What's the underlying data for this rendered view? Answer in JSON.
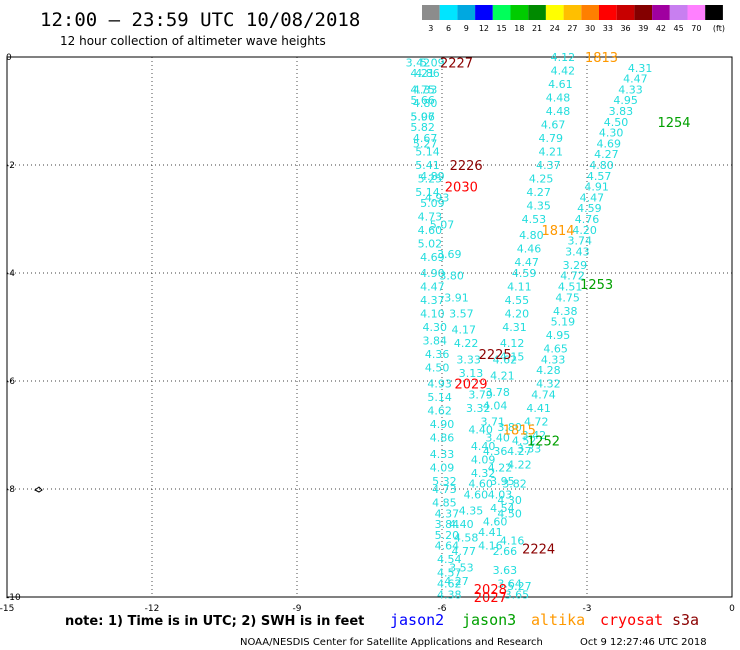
{
  "title": "12:00 – 23:59 UTC 10/08/2018",
  "subtitle": "12 hour collection of altimeter wave heights",
  "legend": {
    "unit": "(ft)",
    "entries": [
      {
        "label": "3",
        "color": "#8c8c8c"
      },
      {
        "label": "6",
        "color": "#00e5ff"
      },
      {
        "label": "9",
        "color": "#00a8e0"
      },
      {
        "label": "12",
        "color": "#0000ff"
      },
      {
        "label": "15",
        "color": "#00ff5a"
      },
      {
        "label": "18",
        "color": "#00cc00"
      },
      {
        "label": "21",
        "color": "#008a00"
      },
      {
        "label": "24",
        "color": "#ffff00"
      },
      {
        "label": "27",
        "color": "#ffbf00"
      },
      {
        "label": "30",
        "color": "#ff7f00"
      },
      {
        "label": "33",
        "color": "#ff0000"
      },
      {
        "label": "36",
        "color": "#c80000"
      },
      {
        "label": "39",
        "color": "#840000"
      },
      {
        "label": "42",
        "color": "#a000a0"
      },
      {
        "label": "45",
        "color": "#c87ff0"
      },
      {
        "label": "70",
        "color": "#ff80ff"
      },
      {
        "label": "",
        "color": "#000000"
      }
    ]
  },
  "note": "note: 1) Time is in UTC; 2) SWH is in feet",
  "satellites": [
    {
      "name": "jason2",
      "color": "#0000ff"
    },
    {
      "name": "jason3",
      "color": "#00a000"
    },
    {
      "name": "altika",
      "color": "#ff9900"
    },
    {
      "name": "cryosat",
      "color": "#ff0000"
    },
    {
      "name": "s3a",
      "color": "#8b0000"
    }
  ],
  "footer": {
    "center": "NOAA/NESDIS Center for Satellite Applications and Research",
    "timestamp": "Oct  9 12:27:46 UTC 2018"
  },
  "chart_data": {
    "type": "scatter",
    "xlim": [
      -15,
      0
    ],
    "ylim": [
      -10,
      0
    ],
    "xticks": [
      "-15",
      "-12",
      "-9",
      "-6",
      "-3",
      "0"
    ],
    "yticks": [
      "0",
      "-2",
      "-4",
      "-6",
      "-8",
      "-10"
    ],
    "grid": true,
    "colors": {
      "value": "#22dddd",
      "jason3": "#00a000",
      "altika": "#ff9900",
      "cryosat": "#ff0000",
      "s3a": "#8b0000"
    },
    "pass_labels": [
      {
        "text": "2227",
        "x": -5.7,
        "y": -0.1,
        "sat": "s3a"
      },
      {
        "text": "1813",
        "x": -2.7,
        "y": 0.0,
        "sat": "altika"
      },
      {
        "text": "1254",
        "x": -1.2,
        "y": -1.2,
        "sat": "jason3"
      },
      {
        "text": "2226",
        "x": -5.5,
        "y": -2.0,
        "sat": "s3a"
      },
      {
        "text": "2030",
        "x": -5.6,
        "y": -2.4,
        "sat": "cryosat"
      },
      {
        "text": "1814",
        "x": -3.6,
        "y": -3.2,
        "sat": "altika"
      },
      {
        "text": "1253",
        "x": -2.8,
        "y": -4.2,
        "sat": "jason3"
      },
      {
        "text": "2225",
        "x": -4.9,
        "y": -5.5,
        "sat": "s3a"
      },
      {
        "text": "2029",
        "x": -5.4,
        "y": -6.05,
        "sat": "cryosat"
      },
      {
        "text": "1815",
        "x": -4.4,
        "y": -6.9,
        "sat": "altika"
      },
      {
        "text": "1252",
        "x": -3.9,
        "y": -7.1,
        "sat": "jason3"
      },
      {
        "text": "2224",
        "x": -4.0,
        "y": -9.1,
        "sat": "s3a"
      },
      {
        "text": "2028",
        "x": -5.0,
        "y": -9.85,
        "sat": "cryosat"
      },
      {
        "text": "2027",
        "x": -5.0,
        "y": -10.0,
        "sat": "cryosat"
      }
    ],
    "tracks": [
      {
        "name": "s3a-pass",
        "values": [
          {
            "x": -6.5,
            "y": -0.1,
            "v": "3.42"
          },
          {
            "x": -6.4,
            "y": -0.3,
            "v": "4.21"
          },
          {
            "x": -6.4,
            "y": -0.6,
            "v": "4.75"
          },
          {
            "x": -6.4,
            "y": -0.8,
            "v": "5.66"
          },
          {
            "x": -6.4,
            "y": -1.1,
            "v": "5.97"
          },
          {
            "x": -6.4,
            "y": -1.3,
            "v": "5.82"
          },
          {
            "x": -6.35,
            "y": -1.5,
            "v": "4.67"
          },
          {
            "x": -6.3,
            "y": -1.75,
            "v": "5.14"
          },
          {
            "x": -6.3,
            "y": -2.0,
            "v": "5.41"
          },
          {
            "x": -6.25,
            "y": -2.25,
            "v": "5.25"
          },
          {
            "x": -6.3,
            "y": -2.5,
            "v": "5.14"
          },
          {
            "x": -6.2,
            "y": -2.7,
            "v": "5.09"
          },
          {
            "x": -6.25,
            "y": -2.95,
            "v": "4.73"
          },
          {
            "x": -6.25,
            "y": -3.2,
            "v": "4.60"
          },
          {
            "x": -6.25,
            "y": -3.45,
            "v": "5.02"
          },
          {
            "x": -6.2,
            "y": -3.7,
            "v": "4.69"
          },
          {
            "x": -6.2,
            "y": -4.0,
            "v": "4.90"
          },
          {
            "x": -6.2,
            "y": -4.25,
            "v": "4.47"
          },
          {
            "x": -6.2,
            "y": -4.5,
            "v": "4.37"
          },
          {
            "x": -6.2,
            "y": -4.75,
            "v": "4.10"
          },
          {
            "x": -6.15,
            "y": -5.0,
            "v": "4.30"
          },
          {
            "x": -6.15,
            "y": -5.25,
            "v": "3.84"
          },
          {
            "x": -6.1,
            "y": -5.5,
            "v": "4.36"
          },
          {
            "x": -6.1,
            "y": -5.75,
            "v": "4.50"
          },
          {
            "x": -6.05,
            "y": -6.05,
            "v": "4.93"
          },
          {
            "x": -6.05,
            "y": -6.3,
            "v": "5.14"
          },
          {
            "x": -6.05,
            "y": -6.55,
            "v": "4.62"
          },
          {
            "x": -6.0,
            "y": -6.8,
            "v": "4.90"
          },
          {
            "x": -6.0,
            "y": -7.05,
            "v": "4.86"
          },
          {
            "x": -6.0,
            "y": -7.35,
            "v": "4.33"
          },
          {
            "x": -6.0,
            "y": -7.6,
            "v": "4.09"
          },
          {
            "x": -5.95,
            "y": -7.85,
            "v": "5.32"
          },
          {
            "x": -5.95,
            "y": -8.0,
            "v": "4.73"
          },
          {
            "x": -5.95,
            "y": -8.25,
            "v": "4.85"
          },
          {
            "x": -5.9,
            "y": -8.45,
            "v": "4.37"
          },
          {
            "x": -5.9,
            "y": -8.65,
            "v": "3.84"
          },
          {
            "x": -5.9,
            "y": -8.85,
            "v": "5.20"
          },
          {
            "x": -5.9,
            "y": -9.05,
            "v": "4.64"
          },
          {
            "x": -5.85,
            "y": -9.3,
            "v": "4.54"
          },
          {
            "x": -5.85,
            "y": -9.55,
            "v": "4.57"
          },
          {
            "x": -5.85,
            "y": -9.75,
            "v": "4.62"
          },
          {
            "x": -5.85,
            "y": -9.95,
            "v": "4.38"
          }
        ]
      },
      {
        "name": "cryosat-pass",
        "values": [
          {
            "x": -6.2,
            "y": -0.1,
            "v": "5.09"
          },
          {
            "x": -6.3,
            "y": -0.3,
            "v": "4.86"
          },
          {
            "x": -6.35,
            "y": -0.6,
            "v": "4.33"
          },
          {
            "x": -6.35,
            "y": -0.85,
            "v": "4.80"
          },
          {
            "x": -6.4,
            "y": -1.1,
            "v": "5.06"
          },
          {
            "x": -6.35,
            "y": -1.6,
            "v": "5.27"
          },
          {
            "x": -6.2,
            "y": -2.2,
            "v": "4.89"
          },
          {
            "x": -6.1,
            "y": -2.6,
            "v": "4.93"
          },
          {
            "x": -6.0,
            "y": -3.1,
            "v": "5.07"
          },
          {
            "x": -5.85,
            "y": -3.65,
            "v": "3.69"
          },
          {
            "x": -5.8,
            "y": -4.05,
            "v": "3.80"
          },
          {
            "x": -5.7,
            "y": -4.45,
            "v": "3.91"
          },
          {
            "x": -5.6,
            "y": -4.75,
            "v": "3.57"
          },
          {
            "x": -5.55,
            "y": -5.05,
            "v": "4.17"
          },
          {
            "x": -5.5,
            "y": -5.3,
            "v": "4.22"
          },
          {
            "x": -5.45,
            "y": -5.6,
            "v": "3.33"
          },
          {
            "x": -5.4,
            "y": -5.85,
            "v": "3.13"
          },
          {
            "x": -5.2,
            "y": -6.25,
            "v": "3.79"
          },
          {
            "x": -5.25,
            "y": -6.5,
            "v": "3.32"
          },
          {
            "x": -5.2,
            "y": -6.9,
            "v": "4.40"
          },
          {
            "x": -5.15,
            "y": -7.2,
            "v": "4.40"
          },
          {
            "x": -5.15,
            "y": -7.45,
            "v": "4.09"
          },
          {
            "x": -5.15,
            "y": -7.7,
            "v": "4.32"
          },
          {
            "x": -5.2,
            "y": -7.9,
            "v": "4.60"
          },
          {
            "x": -5.3,
            "y": -8.1,
            "v": "4.60"
          },
          {
            "x": -5.4,
            "y": -8.4,
            "v": "4.35"
          },
          {
            "x": -5.6,
            "y": -8.65,
            "v": "4.40"
          },
          {
            "x": -5.5,
            "y": -8.9,
            "v": "4.58"
          },
          {
            "x": -5.55,
            "y": -9.15,
            "v": "4.77"
          },
          {
            "x": -5.6,
            "y": -9.45,
            "v": "3.53"
          },
          {
            "x": -5.7,
            "y": -9.7,
            "v": "4.27"
          }
        ]
      },
      {
        "name": "s3a-pass-2",
        "values": [
          {
            "x": -4.7,
            "y": -5.6,
            "v": "4.62"
          },
          {
            "x": -4.75,
            "y": -5.9,
            "v": "4.21"
          },
          {
            "x": -4.85,
            "y": -6.2,
            "v": "3.78"
          },
          {
            "x": -4.9,
            "y": -6.45,
            "v": "4.04"
          },
          {
            "x": -4.95,
            "y": -6.75,
            "v": "3.71"
          },
          {
            "x": -4.85,
            "y": -7.05,
            "v": "3.40"
          },
          {
            "x": -4.9,
            "y": -7.3,
            "v": "4.36"
          },
          {
            "x": -4.8,
            "y": -7.6,
            "v": "4.22"
          },
          {
            "x": -4.75,
            "y": -7.85,
            "v": "3.95"
          },
          {
            "x": -4.8,
            "y": -8.1,
            "v": "4.03"
          },
          {
            "x": -4.75,
            "y": -8.35,
            "v": "4.54"
          },
          {
            "x": -4.9,
            "y": -8.6,
            "v": "4.60"
          },
          {
            "x": -5.0,
            "y": -8.8,
            "v": "4.41"
          },
          {
            "x": -5.0,
            "y": -9.05,
            "v": "4.16"
          },
          {
            "x": -4.7,
            "y": -9.15,
            "v": "2.66"
          },
          {
            "x": -4.7,
            "y": -9.5,
            "v": "3.63"
          },
          {
            "x": -4.6,
            "y": -9.75,
            "v": "3.64"
          },
          {
            "x": -4.45,
            "y": -9.95,
            "v": "3.65"
          }
        ]
      },
      {
        "name": "altika-pass",
        "values": [
          {
            "x": -3.5,
            "y": 0.0,
            "v": "4.12"
          },
          {
            "x": -3.5,
            "y": -0.25,
            "v": "4.42"
          },
          {
            "x": -3.55,
            "y": -0.5,
            "v": "4.61"
          },
          {
            "x": -3.6,
            "y": -0.75,
            "v": "4.48"
          },
          {
            "x": -3.6,
            "y": -1.0,
            "v": "4.48"
          },
          {
            "x": -3.7,
            "y": -1.25,
            "v": "4.67"
          },
          {
            "x": -3.75,
            "y": -1.5,
            "v": "4.79"
          },
          {
            "x": -3.75,
            "y": -1.75,
            "v": "4.21"
          },
          {
            "x": -3.8,
            "y": -2.0,
            "v": "4.37"
          },
          {
            "x": -3.95,
            "y": -2.25,
            "v": "4.25"
          },
          {
            "x": -4.0,
            "y": -2.5,
            "v": "4.27"
          },
          {
            "x": -4.0,
            "y": -2.75,
            "v": "4.35"
          },
          {
            "x": -4.1,
            "y": -3.0,
            "v": "4.53"
          },
          {
            "x": -4.15,
            "y": -3.3,
            "v": "4.80"
          },
          {
            "x": -4.2,
            "y": -3.55,
            "v": "4.46"
          },
          {
            "x": -4.25,
            "y": -3.8,
            "v": "4.47"
          },
          {
            "x": -4.3,
            "y": -4.0,
            "v": "4.59"
          },
          {
            "x": -4.4,
            "y": -4.25,
            "v": "4.11"
          },
          {
            "x": -4.45,
            "y": -4.5,
            "v": "4.55"
          },
          {
            "x": -4.45,
            "y": -4.75,
            "v": "4.20"
          },
          {
            "x": -4.5,
            "y": -5.0,
            "v": "4.31"
          },
          {
            "x": -4.55,
            "y": -5.3,
            "v": "4.12"
          },
          {
            "x": -4.55,
            "y": -5.55,
            "v": "4.15"
          },
          {
            "x": -4.6,
            "y": -6.85,
            "v": "3.80"
          },
          {
            "x": -4.3,
            "y": -7.1,
            "v": "4.52"
          },
          {
            "x": -4.4,
            "y": -7.3,
            "v": "4.27"
          },
          {
            "x": -4.4,
            "y": -7.55,
            "v": "4.22"
          },
          {
            "x": -4.5,
            "y": -7.9,
            "v": "3.82"
          },
          {
            "x": -4.6,
            "y": -8.2,
            "v": "4.30"
          },
          {
            "x": -4.6,
            "y": -8.45,
            "v": "4.50"
          },
          {
            "x": -4.55,
            "y": -8.95,
            "v": "4.16"
          },
          {
            "x": -4.4,
            "y": -9.8,
            "v": "5.27"
          }
        ]
      },
      {
        "name": "jason3-pass",
        "values": [
          {
            "x": -1.9,
            "y": -0.2,
            "v": "4.31"
          },
          {
            "x": -2.0,
            "y": -0.4,
            "v": "4.47"
          },
          {
            "x": -2.1,
            "y": -0.6,
            "v": "4.33"
          },
          {
            "x": -2.2,
            "y": -0.8,
            "v": "4.95"
          },
          {
            "x": -2.3,
            "y": -1.0,
            "v": "3.83"
          },
          {
            "x": -2.4,
            "y": -1.2,
            "v": "4.50"
          },
          {
            "x": -2.5,
            "y": -1.4,
            "v": "4.30"
          },
          {
            "x": -2.55,
            "y": -1.6,
            "v": "4.69"
          },
          {
            "x": -2.6,
            "y": -1.8,
            "v": "4.27"
          },
          {
            "x": -2.7,
            "y": -2.0,
            "v": "4.80"
          },
          {
            "x": -2.75,
            "y": -2.2,
            "v": "4.57"
          },
          {
            "x": -2.8,
            "y": -2.4,
            "v": "4.91"
          },
          {
            "x": -2.9,
            "y": -2.6,
            "v": "4.47"
          },
          {
            "x": -2.95,
            "y": -2.8,
            "v": "4.59"
          },
          {
            "x": -3.0,
            "y": -3.0,
            "v": "4.76"
          },
          {
            "x": -3.05,
            "y": -3.2,
            "v": "4.20"
          },
          {
            "x": -3.15,
            "y": -3.4,
            "v": "3.74"
          },
          {
            "x": -3.2,
            "y": -3.6,
            "v": "3.43"
          },
          {
            "x": -3.25,
            "y": -3.85,
            "v": "3.29"
          },
          {
            "x": -3.3,
            "y": -4.05,
            "v": "4.72"
          },
          {
            "x": -3.35,
            "y": -4.25,
            "v": "4.51"
          },
          {
            "x": -3.4,
            "y": -4.45,
            "v": "4.75"
          },
          {
            "x": -3.45,
            "y": -4.7,
            "v": "4.38"
          },
          {
            "x": -3.5,
            "y": -4.9,
            "v": "5.19"
          },
          {
            "x": -3.6,
            "y": -5.15,
            "v": "4.95"
          },
          {
            "x": -3.65,
            "y": -5.4,
            "v": "4.65"
          },
          {
            "x": -3.7,
            "y": -5.6,
            "v": "4.33"
          },
          {
            "x": -3.8,
            "y": -5.8,
            "v": "4.28"
          },
          {
            "x": -3.8,
            "y": -6.05,
            "v": "4.32"
          },
          {
            "x": -3.9,
            "y": -6.25,
            "v": "4.74"
          },
          {
            "x": -4.0,
            "y": -6.5,
            "v": "4.41"
          },
          {
            "x": -4.05,
            "y": -6.75,
            "v": "4.72"
          },
          {
            "x": -4.1,
            "y": -7.0,
            "v": "3.42"
          },
          {
            "x": -4.2,
            "y": -7.25,
            "v": "3.33"
          }
        ]
      }
    ]
  }
}
